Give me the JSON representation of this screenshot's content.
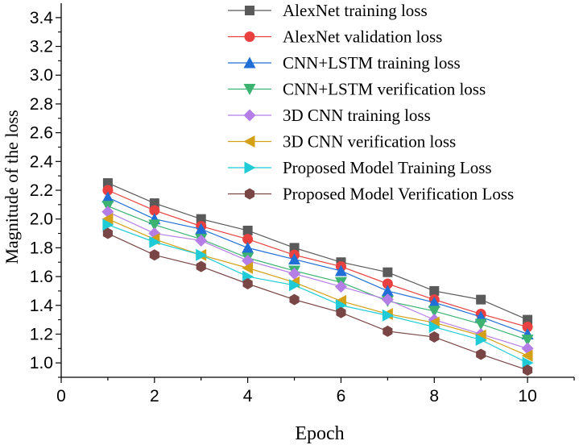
{
  "chart_data": {
    "type": "line",
    "xlabel": "Epoch",
    "ylabel": "Magnitude of the loss",
    "xlim": [
      0,
      11
    ],
    "ylim": [
      0.9,
      3.5
    ],
    "x_ticks": [
      0,
      2,
      4,
      6,
      8,
      10
    ],
    "y_ticks": [
      1.0,
      1.2,
      1.4,
      1.6,
      1.8,
      2.0,
      2.2,
      2.4,
      2.6,
      2.8,
      3.0,
      3.2,
      3.4
    ],
    "grid": false,
    "legend_position": "top-right",
    "x": [
      1,
      2,
      3,
      4,
      5,
      6,
      7,
      8,
      9,
      10
    ],
    "series": [
      {
        "name": "AlexNet training loss",
        "color": "#5a5a5a",
        "marker": "square",
        "values": [
          2.25,
          2.11,
          2.0,
          1.92,
          1.8,
          1.7,
          1.63,
          1.5,
          1.44,
          1.3
        ]
      },
      {
        "name": "AlexNet validation loss",
        "color": "#e8413f",
        "marker": "circle",
        "values": [
          2.2,
          2.06,
          1.95,
          1.86,
          1.75,
          1.67,
          1.55,
          1.44,
          1.34,
          1.25
        ]
      },
      {
        "name": "CNN+LSTM training loss",
        "color": "#1f6fd6",
        "marker": "triangle-up",
        "values": [
          2.15,
          2.0,
          1.93,
          1.8,
          1.72,
          1.64,
          1.5,
          1.42,
          1.32,
          1.2
        ]
      },
      {
        "name": "CNN+LSTM verification loss",
        "color": "#3cb371",
        "marker": "triangle-down",
        "values": [
          2.09,
          1.96,
          1.86,
          1.73,
          1.64,
          1.56,
          1.43,
          1.36,
          1.27,
          1.16
        ]
      },
      {
        "name": "3D CNN training loss",
        "color": "#b57ee6",
        "marker": "diamond",
        "values": [
          2.05,
          1.9,
          1.85,
          1.71,
          1.62,
          1.53,
          1.44,
          1.3,
          1.2,
          1.1
        ]
      },
      {
        "name": "3D CNN verification loss",
        "color": "#d4a017",
        "marker": "triangle-left",
        "values": [
          2.0,
          1.86,
          1.75,
          1.66,
          1.56,
          1.43,
          1.34,
          1.28,
          1.19,
          1.05
        ]
      },
      {
        "name": "Proposed Model Training Loss",
        "color": "#1ecbd6",
        "marker": "triangle-right",
        "values": [
          1.96,
          1.84,
          1.75,
          1.6,
          1.54,
          1.4,
          1.33,
          1.25,
          1.16,
          1.0
        ]
      },
      {
        "name": "Proposed Model Verification Loss",
        "color": "#7a4545",
        "marker": "hexagon",
        "values": [
          1.9,
          1.75,
          1.67,
          1.55,
          1.44,
          1.35,
          1.22,
          1.18,
          1.06,
          0.95
        ]
      }
    ]
  }
}
